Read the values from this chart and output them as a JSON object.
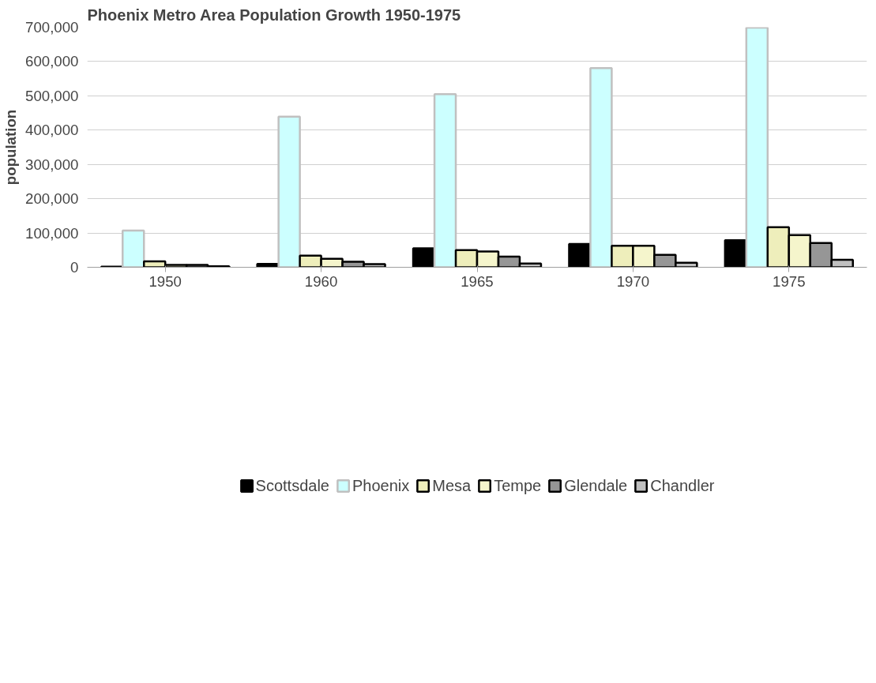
{
  "chart_data": {
    "type": "bar",
    "title": "Phoenix Metro Area Population Growth 1950-1975",
    "ylabel": "population",
    "categories": [
      "1950",
      "1960",
      "1965",
      "1970",
      "1975"
    ],
    "series": [
      {
        "name": "Scottsdale",
        "color": "#000000",
        "values": [
          2000,
          10000,
          55000,
          68000,
          79000
        ]
      },
      {
        "name": "Phoenix",
        "color": "#ccffff",
        "values": [
          107000,
          439000,
          505000,
          581000,
          699000
        ]
      },
      {
        "name": "Mesa",
        "color": "#eeeebb",
        "values": [
          17000,
          34000,
          50000,
          63000,
          117000
        ]
      },
      {
        "name": "Tempe",
        "color": "#f5f5cc",
        "values": [
          7000,
          25000,
          46000,
          63000,
          94000
        ]
      },
      {
        "name": "Glendale",
        "color": "#969696",
        "values": [
          7000,
          16000,
          31000,
          36000,
          71000
        ]
      },
      {
        "name": "Chandler",
        "color": "#c0c0c0",
        "values": [
          3000,
          9000,
          11000,
          13000,
          22000
        ]
      }
    ],
    "ylim": [
      0,
      700000
    ],
    "yticks": [
      {
        "value": 0,
        "label": "0"
      },
      {
        "value": 100000,
        "label": "100,000"
      },
      {
        "value": 200000,
        "label": "200,000"
      },
      {
        "value": 300000,
        "label": "300,000"
      },
      {
        "value": 400000,
        "label": "400,000"
      },
      {
        "value": 500000,
        "label": "500,000"
      },
      {
        "value": 600000,
        "label": "600,000"
      },
      {
        "value": 700000,
        "label": "700,000"
      }
    ],
    "grid": "y",
    "legend": "bottom"
  }
}
